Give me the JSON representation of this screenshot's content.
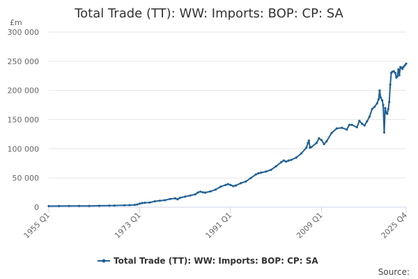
{
  "chart_data": {
    "type": "line",
    "title": "Total Trade (TT): WW: Imports: BOP: CP: SA",
    "ylabel": "£m",
    "ylim": [
      0,
      300000
    ],
    "yticks": [
      0,
      50000,
      100000,
      150000,
      200000,
      250000,
      300000
    ],
    "ytick_labels": [
      "0",
      "50 000",
      "100 000",
      "150 000",
      "200 000",
      "250 000",
      "300 000"
    ],
    "xlim": [
      1955.0,
      2025.75
    ],
    "xticks": [
      {
        "label": "1955 Q1",
        "value": 1955.0
      },
      {
        "label": "1973 Q1",
        "value": 1973.0
      },
      {
        "label": "1991 Q1",
        "value": 1991.0
      },
      {
        "label": "2009 Q1",
        "value": 2009.0
      },
      {
        "label": "2025 Q4",
        "value": 2025.75
      }
    ],
    "grid": true,
    "legend_position": "bottom",
    "source_label": "Source:",
    "color": "#206095",
    "series": [
      {
        "name": "Total Trade (TT): WW: Imports: BOP: CP: SA",
        "points": [
          [
            1955.0,
            1800
          ],
          [
            1957.0,
            1900
          ],
          [
            1959.0,
            2000
          ],
          [
            1961.0,
            2100
          ],
          [
            1963.0,
            2200
          ],
          [
            1965.0,
            2400
          ],
          [
            1967.0,
            2600
          ],
          [
            1968.0,
            2800
          ],
          [
            1970.0,
            3200
          ],
          [
            1971.0,
            3500
          ],
          [
            1972.0,
            4000
          ],
          [
            1972.5,
            4500
          ],
          [
            1973.0,
            6000
          ],
          [
            1973.5,
            7000
          ],
          [
            1974.0,
            7500
          ],
          [
            1975.0,
            8000
          ],
          [
            1976.0,
            10000
          ],
          [
            1977.0,
            11000
          ],
          [
            1978.0,
            12000
          ],
          [
            1979.0,
            14000
          ],
          [
            1980.0,
            15000
          ],
          [
            1980.5,
            13500
          ],
          [
            1981.0,
            16000
          ],
          [
            1982.0,
            18000
          ],
          [
            1983.0,
            20000
          ],
          [
            1984.0,
            22000
          ],
          [
            1984.5,
            25000
          ],
          [
            1985.0,
            26500
          ],
          [
            1985.5,
            25500
          ],
          [
            1986.0,
            25000
          ],
          [
            1987.0,
            27000
          ],
          [
            1988.0,
            30000
          ],
          [
            1989.0,
            35000
          ],
          [
            1990.0,
            38000
          ],
          [
            1990.5,
            39500
          ],
          [
            1991.0,
            38000
          ],
          [
            1991.5,
            36000
          ],
          [
            1992.0,
            37000
          ],
          [
            1993.0,
            41000
          ],
          [
            1994.0,
            44000
          ],
          [
            1995.0,
            50000
          ],
          [
            1996.0,
            56000
          ],
          [
            1996.5,
            58000
          ],
          [
            1997.0,
            59000
          ],
          [
            1998.0,
            61000
          ],
          [
            1999.0,
            64000
          ],
          [
            2000.0,
            70000
          ],
          [
            2001.0,
            77000
          ],
          [
            2001.5,
            80000
          ],
          [
            2002.0,
            78000
          ],
          [
            2002.5,
            80000
          ],
          [
            2003.0,
            81000
          ],
          [
            2004.0,
            85000
          ],
          [
            2005.0,
            92000
          ],
          [
            2006.0,
            102000
          ],
          [
            2006.3,
            110000
          ],
          [
            2006.5,
            114000
          ],
          [
            2006.7,
            102000
          ],
          [
            2007.0,
            103000
          ],
          [
            2008.0,
            110000
          ],
          [
            2008.5,
            118000
          ],
          [
            2009.0,
            115000
          ],
          [
            2009.5,
            108000
          ],
          [
            2010.0,
            113000
          ],
          [
            2011.0,
            127000
          ],
          [
            2012.0,
            135000
          ],
          [
            2013.0,
            136000
          ],
          [
            2014.0,
            133000
          ],
          [
            2014.5,
            141000
          ],
          [
            2015.0,
            141000
          ],
          [
            2016.0,
            137000
          ],
          [
            2016.5,
            148000
          ],
          [
            2017.0,
            143000
          ],
          [
            2017.5,
            140000
          ],
          [
            2018.0,
            147000
          ],
          [
            2018.5,
            155000
          ],
          [
            2019.0,
            168000
          ],
          [
            2019.5,
            172000
          ],
          [
            2020.0,
            178000
          ],
          [
            2020.3,
            185000
          ],
          [
            2020.5,
            200000
          ],
          [
            2020.7,
            188000
          ],
          [
            2021.0,
            183000
          ],
          [
            2021.2,
            175000
          ],
          [
            2021.4,
            128000
          ],
          [
            2021.6,
            170000
          ],
          [
            2021.8,
            162000
          ],
          [
            2022.0,
            160000
          ],
          [
            2022.2,
            168000
          ],
          [
            2022.4,
            180000
          ],
          [
            2022.6,
            210000
          ],
          [
            2022.8,
            230000
          ],
          [
            2023.0,
            232000
          ],
          [
            2023.3,
            233000
          ],
          [
            2023.6,
            230000
          ],
          [
            2023.8,
            222000
          ],
          [
            2024.0,
            224000
          ],
          [
            2024.2,
            236000
          ],
          [
            2024.4,
            226000
          ],
          [
            2024.6,
            240000
          ],
          [
            2024.8,
            239000
          ],
          [
            2025.0,
            237000
          ],
          [
            2025.2,
            240000
          ],
          [
            2025.5,
            243000
          ],
          [
            2025.75,
            246000
          ]
        ]
      }
    ]
  }
}
